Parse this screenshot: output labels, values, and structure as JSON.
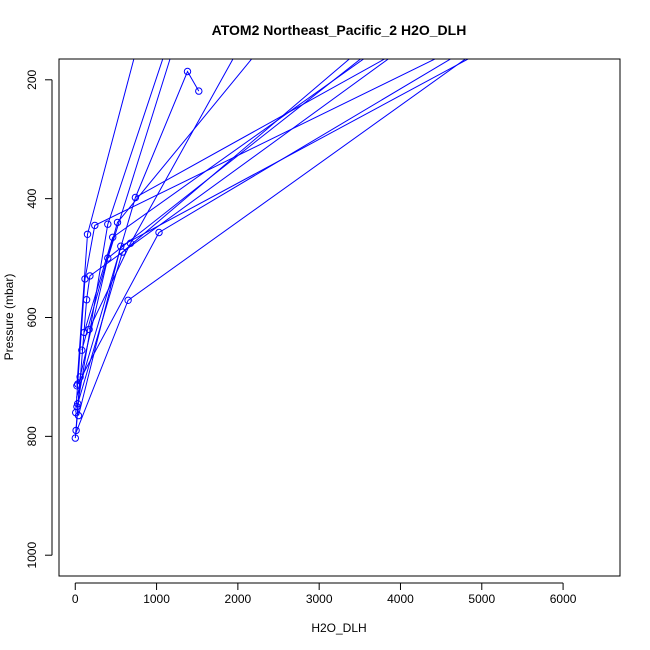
{
  "chart_data": {
    "type": "line",
    "title": "ATOM2 Northeast_Pacific_2 H2O_DLH",
    "xlabel": "H2O_DLH",
    "ylabel": "Pressure (mbar)",
    "xlim": [
      -200,
      6700
    ],
    "ylim": [
      1035,
      165
    ],
    "y_inverted": true,
    "x_ticks": [
      0,
      1000,
      2000,
      3000,
      4000,
      5000,
      6000
    ],
    "y_ticks": [
      200,
      400,
      600,
      800,
      1000
    ],
    "grid": false,
    "legend": "none",
    "series_color": "#0000ff",
    "marker": "open-circle",
    "points": [
      {
        "x": 0,
        "y": 803
      },
      {
        "x": 10,
        "y": 790
      },
      {
        "x": 5,
        "y": 760
      },
      {
        "x": 30,
        "y": 745
      },
      {
        "x": 20,
        "y": 715
      },
      {
        "x": 60,
        "y": 700
      },
      {
        "x": 80,
        "y": 655
      },
      {
        "x": 110,
        "y": 625
      },
      {
        "x": 140,
        "y": 570
      },
      {
        "x": 180,
        "y": 530
      },
      {
        "x": 120,
        "y": 535
      },
      {
        "x": 150,
        "y": 460
      },
      {
        "x": 240,
        "y": 445
      },
      {
        "x": 400,
        "y": 443
      },
      {
        "x": 520,
        "y": 440
      },
      {
        "x": 460,
        "y": 465
      },
      {
        "x": 560,
        "y": 480
      },
      {
        "x": 680,
        "y": 475
      },
      {
        "x": 580,
        "y": 490
      },
      {
        "x": 400,
        "y": 500
      },
      {
        "x": 1030,
        "y": 457
      },
      {
        "x": 650,
        "y": 571
      },
      {
        "x": 740,
        "y": 398
      },
      {
        "x": 1380,
        "y": 186
      },
      {
        "x": 1520,
        "y": 219
      },
      {
        "x": 170,
        "y": 620
      },
      {
        "x": 30,
        "y": 712
      },
      {
        "x": 40,
        "y": 765
      },
      {
        "x": 20,
        "y": 750
      }
    ],
    "profiles": [
      [
        {
          "x": 0,
          "y": 803
        },
        {
          "x": 60,
          "y": 700
        },
        {
          "x": 400,
          "y": 500
        },
        {
          "x": 3600,
          "y": 155
        }
      ],
      [
        {
          "x": 10,
          "y": 790
        },
        {
          "x": 140,
          "y": 570
        },
        {
          "x": 180,
          "y": 530
        },
        {
          "x": 4000,
          "y": 150
        }
      ],
      [
        {
          "x": 5,
          "y": 760
        },
        {
          "x": 120,
          "y": 535
        },
        {
          "x": 240,
          "y": 445
        },
        {
          "x": 4500,
          "y": 160
        }
      ],
      [
        {
          "x": 30,
          "y": 745
        },
        {
          "x": 400,
          "y": 443
        },
        {
          "x": 1100,
          "y": 155
        }
      ],
      [
        {
          "x": 20,
          "y": 715
        },
        {
          "x": 150,
          "y": 460
        },
        {
          "x": 750,
          "y": 150
        }
      ],
      [
        {
          "x": 80,
          "y": 655
        },
        {
          "x": 520,
          "y": 440
        },
        {
          "x": 2200,
          "y": 160
        }
      ],
      [
        {
          "x": 110,
          "y": 625
        },
        {
          "x": 460,
          "y": 465
        },
        {
          "x": 3700,
          "y": 150
        }
      ],
      [
        {
          "x": 40,
          "y": 765
        },
        {
          "x": 560,
          "y": 480
        },
        {
          "x": 4900,
          "y": 160
        }
      ],
      [
        {
          "x": 170,
          "y": 620
        },
        {
          "x": 680,
          "y": 475
        },
        {
          "x": 2000,
          "y": 150
        }
      ],
      [
        {
          "x": 20,
          "y": 750
        },
        {
          "x": 580,
          "y": 490
        },
        {
          "x": 3500,
          "y": 150
        }
      ],
      [
        {
          "x": 30,
          "y": 712
        },
        {
          "x": 1030,
          "y": 457
        },
        {
          "x": 4800,
          "y": 150
        }
      ],
      [
        {
          "x": 5,
          "y": 795
        },
        {
          "x": 650,
          "y": 571
        },
        {
          "x": 4850,
          "y": 160
        }
      ],
      [
        {
          "x": 15,
          "y": 735
        },
        {
          "x": 740,
          "y": 398
        },
        {
          "x": 4000,
          "y": 150
        }
      ],
      [
        {
          "x": 740,
          "y": 398
        },
        {
          "x": 1380,
          "y": 186
        },
        {
          "x": 1520,
          "y": 219
        }
      ],
      [
        {
          "x": 400,
          "y": 500
        },
        {
          "x": 1200,
          "y": 150
        }
      ]
    ]
  }
}
